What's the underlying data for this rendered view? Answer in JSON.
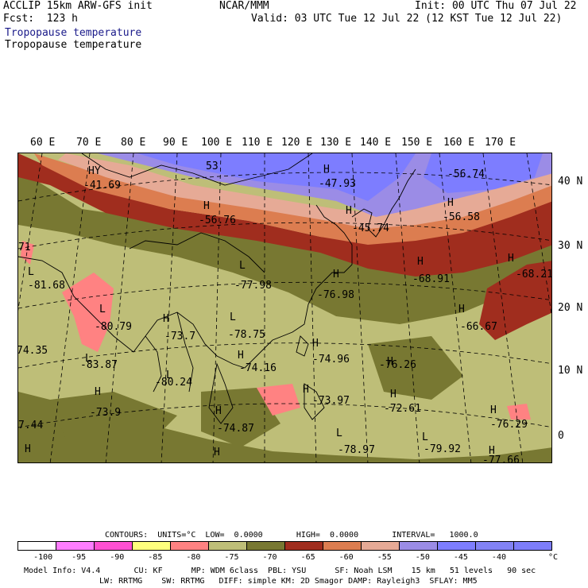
{
  "header": {
    "model": "ACCLIP 15km ARW-GFS init",
    "org": "NCAR/MMM",
    "init": "Init: 00 UTC Thu 07 Jul 22",
    "fcst": "Fcst:  123 h",
    "valid": "Valid: 03 UTC Tue 12 Jul 22 (12 KST Tue 12 Jul 22)",
    "field_blue": "Tropopause temperature",
    "field_black": "Tropopause temperature"
  },
  "axes": {
    "lon_labels": [
      "60 E",
      "70 E",
      "80 E",
      "90 E",
      "100 E",
      "110 E",
      "120 E",
      "130 E",
      "140 E",
      "150 E",
      "160 E",
      "170 E"
    ],
    "lat_labels": [
      "40 N",
      "30 N",
      "20 N",
      "10 N",
      "0"
    ]
  },
  "map_labels": [
    {
      "text": "HY",
      "kind": "center"
    },
    {
      "text": "-41.69",
      "kind": "value"
    },
    {
      "text": "53",
      "kind": "value"
    },
    {
      "text": "H",
      "kind": "center"
    },
    {
      "text": "-47.93",
      "kind": "value"
    },
    {
      "text": "-56.74",
      "kind": "value"
    },
    {
      "text": "H",
      "kind": "center"
    },
    {
      "text": "-56.76",
      "kind": "value"
    },
    {
      "text": "H",
      "kind": "center"
    },
    {
      "text": "-45.74",
      "kind": "value"
    },
    {
      "text": "H",
      "kind": "center"
    },
    {
      "text": "-56.58",
      "kind": "value"
    },
    {
      "text": "71",
      "kind": "value"
    },
    {
      "text": "L",
      "kind": "center"
    },
    {
      "text": "-81.68",
      "kind": "value"
    },
    {
      "text": "L",
      "kind": "center"
    },
    {
      "text": "-77.98",
      "kind": "value"
    },
    {
      "text": "H",
      "kind": "center"
    },
    {
      "text": "-68.91",
      "kind": "value"
    },
    {
      "text": "H",
      "kind": "center"
    },
    {
      "text": "-68.21",
      "kind": "value"
    },
    {
      "text": "H",
      "kind": "center"
    },
    {
      "text": "-76.98",
      "kind": "value"
    },
    {
      "text": "L",
      "kind": "center"
    },
    {
      "text": "-80.79",
      "kind": "value"
    },
    {
      "text": "H",
      "kind": "center"
    },
    {
      "text": "-73.7",
      "kind": "value"
    },
    {
      "text": "L",
      "kind": "center"
    },
    {
      "text": "-78.75",
      "kind": "value"
    },
    {
      "text": "H",
      "kind": "center"
    },
    {
      "text": "-66.67",
      "kind": "value"
    },
    {
      "text": "74.35",
      "kind": "value"
    },
    {
      "text": "L",
      "kind": "center"
    },
    {
      "text": "-83.87",
      "kind": "value"
    },
    {
      "text": "H",
      "kind": "center"
    },
    {
      "text": "-74.96",
      "kind": "value"
    },
    {
      "text": "H",
      "kind": "center"
    },
    {
      "text": "-74.16",
      "kind": "value"
    },
    {
      "text": "H",
      "kind": "center"
    },
    {
      "text": "-76.26",
      "kind": "value"
    },
    {
      "text": "L",
      "kind": "center"
    },
    {
      "text": "-80.24",
      "kind": "value"
    },
    {
      "text": "H",
      "kind": "center"
    },
    {
      "text": "-73.97",
      "kind": "value"
    },
    {
      "text": "H",
      "kind": "center"
    },
    {
      "text": "-72.61",
      "kind": "value"
    },
    {
      "text": "H",
      "kind": "center"
    },
    {
      "text": "-73.9",
      "kind": "value"
    },
    {
      "text": "7.44",
      "kind": "value"
    },
    {
      "text": "H",
      "kind": "center"
    },
    {
      "text": "-74.87",
      "kind": "value"
    },
    {
      "text": "H",
      "kind": "center"
    },
    {
      "text": "-76.29",
      "kind": "value"
    },
    {
      "text": "L",
      "kind": "center"
    },
    {
      "text": "-78.97",
      "kind": "value"
    },
    {
      "text": "L",
      "kind": "center"
    },
    {
      "text": "-79.92",
      "kind": "value"
    },
    {
      "text": "H",
      "kind": "center"
    },
    {
      "text": "H",
      "kind": "center"
    },
    {
      "text": "H",
      "kind": "center"
    },
    {
      "text": "-77.66",
      "kind": "value"
    }
  ],
  "contours_line": "CONTOURS:  UNITS=°C  LOW=  0.0000       HIGH=  0.0000       INTERVAL=   1000.0",
  "legend": {
    "colors": [
      "#ffffff",
      "#ff7dff",
      "#ff50d2",
      "#ffff7d",
      "#ff8282",
      "#bebe78",
      "#787832",
      "#a02d1e",
      "#dc7d50",
      "#e6aa96",
      "#9b8ce6",
      "#7d7dff",
      "#8282f5",
      "#7d7dfa"
    ],
    "ticks": [
      "-100",
      "-95",
      "-90",
      "-85",
      "-80",
      "-75",
      "-70",
      "-65",
      "-60",
      "-55",
      "-50",
      "-45",
      "-40"
    ],
    "unit": "°C"
  },
  "footer": {
    "line1": "Model Info: V4.4       CU: KF      MP: WDM 6class  PBL: YSU      SF: Noah LSM    15 km   51 levels   90 sec",
    "line2": "LW: RRTMG    SW: RRTMG   DIFF: simple KM: 2D Smagor DAMP: Rayleigh3  SFLAY: MM5"
  },
  "palette": {
    "violet": "#9b8ce6",
    "blue": "#7d7dff",
    "pink": "#e6aa96",
    "orange": "#dc7d50",
    "red": "#a02d1e",
    "olive": "#787832",
    "khaki": "#bebe78",
    "salmon": "#ff8282"
  }
}
